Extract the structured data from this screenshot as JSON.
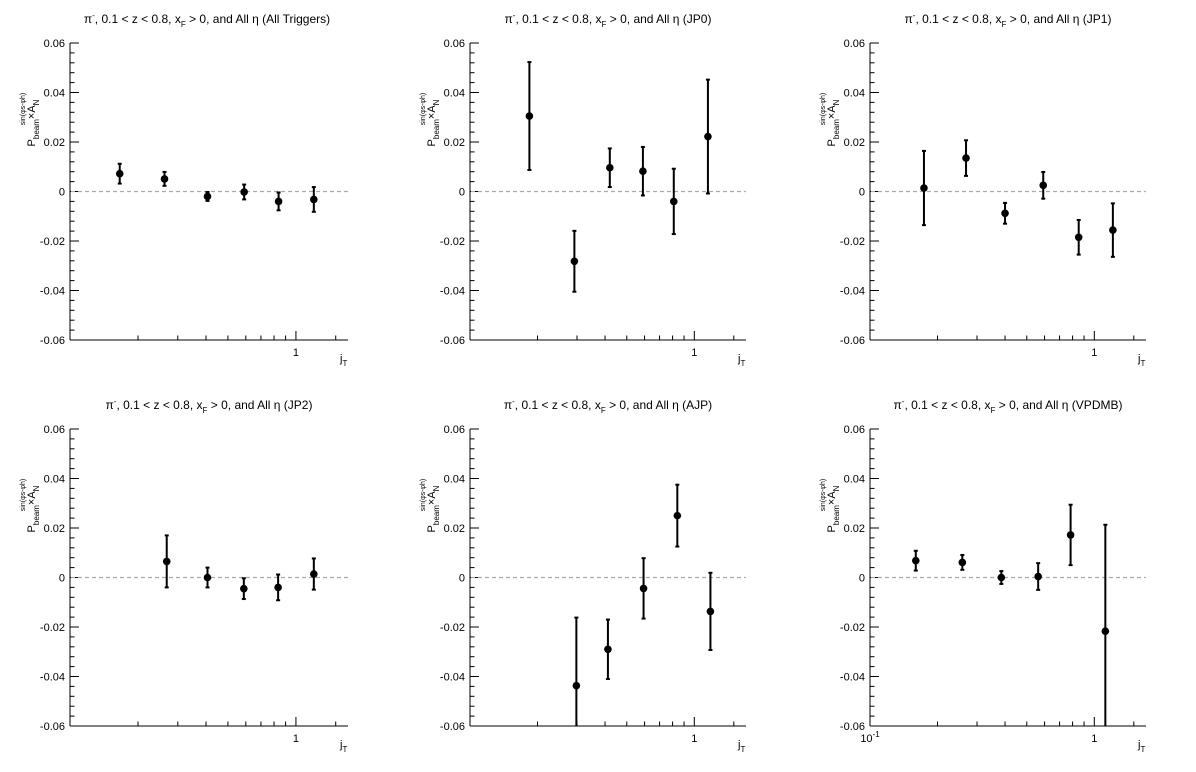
{
  "chart_data": [
    {
      "type": "scatter",
      "title": "π⁻, 0.1 < z < 0.8, x_F > 0, and All η (All Triggers)",
      "title_parts": {
        "pi": "π",
        "minus": "-",
        "mid1": ", 0.1 < z < 0.8, x",
        "sub_F": "F",
        "mid2": " > 0, and All η (All Triggers)"
      },
      "xlabel": {
        "main": "j",
        "sub": "T"
      },
      "ylabel": {
        "P": "P",
        "beam": "beam",
        "times": "×A",
        "N": "N",
        "sup": "sin(φs-φh)"
      },
      "x_scale": "log",
      "xlim": [
        0.1,
        1.7
      ],
      "ylim": [
        -0.06,
        0.06
      ],
      "xtick_labels": [
        {
          "value": 1,
          "label": "1"
        }
      ],
      "yticks": [
        -0.06,
        -0.04,
        -0.02,
        0,
        0.02,
        0.04,
        0.06
      ],
      "ytick_labels": [
        "-0.06",
        "-0.04",
        "-0.02",
        "0",
        "0.02",
        "0.04",
        "0.06"
      ],
      "zero_line": true,
      "series": [
        {
          "x": [
            0.166,
            0.262,
            0.406,
            0.59,
            0.838,
            1.2
          ],
          "y": [
            0.0072,
            0.0051,
            -0.002,
            -0.0002,
            -0.004,
            -0.0032
          ],
          "err": [
            0.004,
            0.0028,
            0.0018,
            0.003,
            0.0036,
            0.005
          ]
        }
      ]
    },
    {
      "type": "scatter",
      "title": "π⁻, 0.1 < z < 0.8, x_F > 0, and All η (JP0)",
      "title_parts": {
        "pi": "π",
        "minus": "-",
        "mid1": ", 0.1 < z < 0.8, x",
        "sub_F": "F",
        "mid2": " > 0, and All η (JP0)"
      },
      "xlabel": {
        "main": "j",
        "sub": "T"
      },
      "ylabel": {
        "P": "P",
        "beam": "beam",
        "times": "×A",
        "N": "N",
        "sup": "sin(φs-φh)"
      },
      "x_scale": "log",
      "xlim": [
        0.1,
        1.7
      ],
      "ylim": [
        -0.06,
        0.06
      ],
      "xtick_labels": [
        {
          "value": 1,
          "label": "1"
        }
      ],
      "yticks": [
        -0.06,
        -0.04,
        -0.02,
        0,
        0.02,
        0.04,
        0.06
      ],
      "ytick_labels": [
        "-0.06",
        "-0.04",
        "-0.02",
        "0",
        "0.02",
        "0.04",
        "0.06"
      ],
      "zero_line": true,
      "series": [
        {
          "x": [
            0.184,
            0.292,
            0.42,
            0.59,
            0.81,
            1.15
          ],
          "y": [
            0.0305,
            -0.0282,
            0.0096,
            0.0082,
            -0.004,
            0.0222
          ],
          "err": [
            0.0218,
            0.0123,
            0.0078,
            0.0098,
            0.0132,
            0.023
          ]
        }
      ]
    },
    {
      "type": "scatter",
      "title": "π⁻, 0.1 < z < 0.8, x_F > 0, and All η (JP1)",
      "title_parts": {
        "pi": "π",
        "minus": "-",
        "mid1": ", 0.1 < z < 0.8, x",
        "sub_F": "F",
        "mid2": " > 0, and All η (JP1)"
      },
      "xlabel": {
        "main": "j",
        "sub": "T"
      },
      "ylabel": {
        "P": "P",
        "beam": "beam",
        "times": "×A",
        "N": "N",
        "sup": "sin(φs-φh)"
      },
      "x_scale": "log",
      "xlim": [
        0.1,
        1.7
      ],
      "ylim": [
        -0.06,
        0.06
      ],
      "xtick_labels": [
        {
          "value": 1,
          "label": "1"
        }
      ],
      "yticks": [
        -0.06,
        -0.04,
        -0.02,
        0,
        0.02,
        0.04,
        0.06
      ],
      "ytick_labels": [
        "-0.06",
        "-0.04",
        "-0.02",
        "0",
        "0.02",
        "0.04",
        "0.06"
      ],
      "zero_line": true,
      "series": [
        {
          "x": [
            0.174,
            0.268,
            0.4,
            0.592,
            0.852,
            1.21
          ],
          "y": [
            0.0014,
            0.0135,
            -0.0088,
            0.0025,
            -0.0185,
            -0.0156
          ],
          "err": [
            0.015,
            0.0072,
            0.0042,
            0.0054,
            0.007,
            0.0108
          ]
        }
      ]
    },
    {
      "type": "scatter",
      "title": "π⁻, 0.1 < z < 0.8, x_F > 0, and All η (JP2)",
      "title_parts": {
        "pi": "π",
        "minus": "-",
        "mid1": ", 0.1 < z < 0.8, x",
        "sub_F": "F",
        "mid2": " > 0, and All η (JP2)"
      },
      "xlabel": {
        "main": "j",
        "sub": "T"
      },
      "ylabel": {
        "P": "P",
        "beam": "beam",
        "times": "×A",
        "N": "N",
        "sup": "sin(φs-φh)"
      },
      "x_scale": "log",
      "xlim": [
        0.1,
        1.7
      ],
      "ylim": [
        -0.06,
        0.06
      ],
      "xtick_labels": [
        {
          "value": 1,
          "label": "1"
        }
      ],
      "yticks": [
        -0.06,
        -0.04,
        -0.02,
        0,
        0.02,
        0.04,
        0.06
      ],
      "ytick_labels": [
        "-0.06",
        "-0.04",
        "-0.02",
        "0",
        "0.02",
        "0.04",
        "0.06"
      ],
      "zero_line": true,
      "series": [
        {
          "x": [
            0.268,
            0.406,
            0.588,
            0.834,
            1.2
          ],
          "y": [
            0.0065,
            0.0,
            -0.0045,
            -0.004,
            0.0014
          ],
          "err": [
            0.0105,
            0.004,
            0.0042,
            0.0052,
            0.0063
          ]
        }
      ]
    },
    {
      "type": "scatter",
      "title": "π⁻, 0.1 < z < 0.8, x_F > 0, and All η (AJP)",
      "title_parts": {
        "pi": "π",
        "minus": "-",
        "mid1": ", 0.1 < z < 0.8, x",
        "sub_F": "F",
        "mid2": " > 0, and All η (AJP)"
      },
      "xlabel": {
        "main": "j",
        "sub": "T"
      },
      "ylabel": {
        "P": "P",
        "beam": "beam",
        "times": "×A",
        "N": "N",
        "sup": "sin(φs-φh)"
      },
      "x_scale": "log",
      "xlim": [
        0.1,
        1.7
      ],
      "ylim": [
        -0.06,
        0.06
      ],
      "xtick_labels": [
        {
          "value": 1,
          "label": "1"
        }
      ],
      "yticks": [
        -0.06,
        -0.04,
        -0.02,
        0,
        0.02,
        0.04,
        0.06
      ],
      "ytick_labels": [
        "-0.06",
        "-0.04",
        "-0.02",
        "0",
        "0.02",
        "0.04",
        "0.06"
      ],
      "zero_line": true,
      "series": [
        {
          "x": [
            0.298,
            0.412,
            0.594,
            0.84,
            1.18
          ],
          "y": [
            -0.0437,
            -0.029,
            -0.0044,
            0.025,
            -0.0137
          ],
          "err": [
            0.0275,
            0.012,
            0.0122,
            0.0125,
            0.0156
          ]
        }
      ]
    },
    {
      "type": "scatter",
      "title": "π⁻, 0.1 < z < 0.8, x_F > 0, and All η (VPDMB)",
      "title_parts": {
        "pi": "π",
        "minus": "-",
        "mid1": ", 0.1 < z < 0.8, x",
        "sub_F": "F",
        "mid2": " > 0, and All η (VPDMB)"
      },
      "xlabel": {
        "main": "j",
        "sub": "T"
      },
      "ylabel": {
        "P": "P",
        "beam": "beam",
        "times": "×A",
        "N": "N",
        "sup": "sin(φs-φh)"
      },
      "x_scale": "log",
      "xlim": [
        0.1,
        1.7
      ],
      "ylim": [
        -0.06,
        0.06
      ],
      "xtick_labels": [
        {
          "value": 0.1,
          "label": "10",
          "sup": "-1"
        },
        {
          "value": 1,
          "label": "1"
        }
      ],
      "yticks": [
        -0.06,
        -0.04,
        -0.02,
        0,
        0.02,
        0.04,
        0.06
      ],
      "ytick_labels": [
        "-0.06",
        "-0.04",
        "-0.02",
        "0",
        "0.02",
        "0.04",
        "0.06"
      ],
      "zero_line": true,
      "series": [
        {
          "x": [
            0.16,
            0.258,
            0.385,
            0.562,
            0.784,
            1.12
          ],
          "y": [
            0.0068,
            0.0061,
            0.0,
            0.0004,
            0.0172,
            -0.0217
          ],
          "err": [
            0.004,
            0.003,
            0.0026,
            0.0054,
            0.0122,
            0.043
          ]
        }
      ]
    }
  ]
}
